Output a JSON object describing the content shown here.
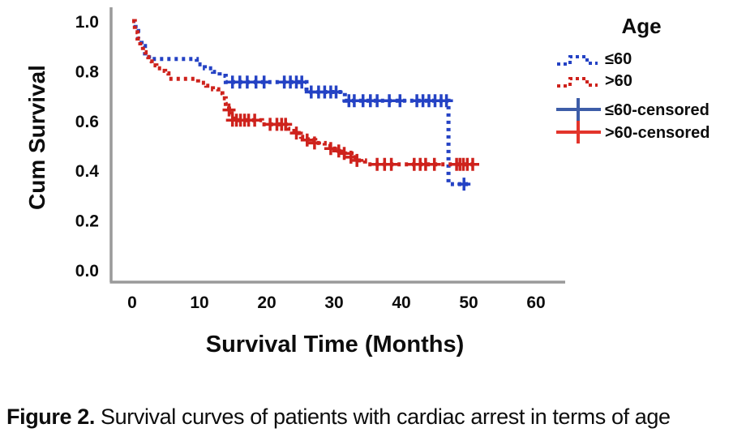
{
  "figure": {
    "caption_label": "Figure 2.",
    "caption_text": " Survival curves of patients with cardiac arrest in terms of age"
  },
  "colors": {
    "axis": "#9A9A9A",
    "text": "#0d0d0d",
    "blue_curve": "#2442C4",
    "red_curve": "#CE221C",
    "blue_censored_legend": "#3D5DA8",
    "red_censored_legend": "#E3342B"
  },
  "chart_data": {
    "type": "line",
    "subtype": "kaplan_meier_step",
    "title": "",
    "xlabel": "Survival Time (Months)",
    "ylabel": "Cum Survival",
    "xlim": [
      0,
      60
    ],
    "ylim": [
      0.0,
      1.0
    ],
    "xticks": [
      "0",
      "10",
      "20",
      "30",
      "40",
      "50",
      "60"
    ],
    "yticks": [
      "0.0",
      "0.2",
      "0.4",
      "0.6",
      "0.8",
      "1.0"
    ],
    "grid": false,
    "legend": {
      "title": "Age",
      "position": "right",
      "items": [
        {
          "label": "≤60",
          "style": "dashed",
          "color": "#2442C4"
        },
        {
          "label": ">60",
          "style": "dashed",
          "color": "#CE221C"
        },
        {
          "label": "≤60-censored",
          "style": "plus",
          "color": "#3D5DA8"
        },
        {
          "label": ">60-censored",
          "style": "plus",
          "color": "#E3342B"
        }
      ]
    },
    "series": [
      {
        "name": "≤60",
        "color": "#2442C4",
        "line": "dotted",
        "steps": [
          [
            0,
            1.0
          ],
          [
            0.5,
            0.96
          ],
          [
            0.9,
            0.93
          ],
          [
            1.4,
            0.9
          ],
          [
            1.9,
            0.87
          ],
          [
            2.5,
            0.848
          ],
          [
            9.6,
            0.826
          ],
          [
            10.8,
            0.81
          ],
          [
            12.0,
            0.796
          ],
          [
            13.0,
            0.78
          ],
          [
            13.9,
            0.755
          ],
          [
            25.9,
            0.715
          ],
          [
            31.6,
            0.68
          ],
          [
            47.0,
            0.345
          ],
          [
            49.9,
            0.345
          ]
        ],
        "censored": [
          [
            14.9,
            0.755
          ],
          [
            16.0,
            0.755
          ],
          [
            17.1,
            0.755
          ],
          [
            18.4,
            0.755
          ],
          [
            19.6,
            0.755
          ],
          [
            22.6,
            0.755
          ],
          [
            23.5,
            0.755
          ],
          [
            24.4,
            0.755
          ],
          [
            25.2,
            0.755
          ],
          [
            26.6,
            0.715
          ],
          [
            27.7,
            0.715
          ],
          [
            28.6,
            0.715
          ],
          [
            29.5,
            0.715
          ],
          [
            30.3,
            0.715
          ],
          [
            32.2,
            0.68
          ],
          [
            33.0,
            0.68
          ],
          [
            34.3,
            0.68
          ],
          [
            35.4,
            0.68
          ],
          [
            36.4,
            0.68
          ],
          [
            38.2,
            0.68
          ],
          [
            39.8,
            0.68
          ],
          [
            42.3,
            0.68
          ],
          [
            43.2,
            0.68
          ],
          [
            44.1,
            0.68
          ],
          [
            45.0,
            0.68
          ],
          [
            45.9,
            0.68
          ],
          [
            46.7,
            0.68
          ],
          [
            49.3,
            0.345
          ]
        ]
      },
      {
        "name": ">60",
        "color": "#CE221C",
        "line": "dotted",
        "steps": [
          [
            0,
            1.0
          ],
          [
            0.4,
            0.955
          ],
          [
            0.8,
            0.93
          ],
          [
            1.2,
            0.9
          ],
          [
            1.6,
            0.875
          ],
          [
            2.0,
            0.856
          ],
          [
            2.4,
            0.838
          ],
          [
            2.9,
            0.822
          ],
          [
            3.6,
            0.81
          ],
          [
            4.3,
            0.8
          ],
          [
            4.9,
            0.79
          ],
          [
            5.4,
            0.768
          ],
          [
            9.8,
            0.752
          ],
          [
            11.0,
            0.74
          ],
          [
            12.0,
            0.726
          ],
          [
            12.8,
            0.71
          ],
          [
            13.4,
            0.69
          ],
          [
            13.9,
            0.667
          ],
          [
            14.4,
            0.643
          ],
          [
            14.8,
            0.618
          ],
          [
            15.1,
            0.602
          ],
          [
            19.3,
            0.585
          ],
          [
            23.2,
            0.567
          ],
          [
            24.1,
            0.55
          ],
          [
            25.1,
            0.535
          ],
          [
            26.1,
            0.522
          ],
          [
            27.2,
            0.51
          ],
          [
            28.6,
            0.498
          ],
          [
            29.7,
            0.488
          ],
          [
            30.7,
            0.478
          ],
          [
            31.6,
            0.468
          ],
          [
            32.6,
            0.453
          ],
          [
            33.6,
            0.44
          ],
          [
            34.6,
            0.424
          ],
          [
            51.1,
            0.424
          ]
        ],
        "censored": [
          [
            14.4,
            0.643
          ],
          [
            14.9,
            0.602
          ],
          [
            15.5,
            0.602
          ],
          [
            16.1,
            0.602
          ],
          [
            16.7,
            0.602
          ],
          [
            17.3,
            0.602
          ],
          [
            18.2,
            0.602
          ],
          [
            20.5,
            0.585
          ],
          [
            21.5,
            0.585
          ],
          [
            22.2,
            0.585
          ],
          [
            22.8,
            0.585
          ],
          [
            24.4,
            0.55
          ],
          [
            26.0,
            0.522
          ],
          [
            27.1,
            0.51
          ],
          [
            29.5,
            0.488
          ],
          [
            30.7,
            0.478
          ],
          [
            31.5,
            0.468
          ],
          [
            32.5,
            0.453
          ],
          [
            33.4,
            0.44
          ],
          [
            36.4,
            0.424
          ],
          [
            37.5,
            0.424
          ],
          [
            38.5,
            0.424
          ],
          [
            41.9,
            0.424
          ],
          [
            42.8,
            0.424
          ],
          [
            43.6,
            0.424
          ],
          [
            44.9,
            0.424
          ],
          [
            48.2,
            0.424
          ],
          [
            48.7,
            0.424
          ],
          [
            49.2,
            0.424
          ],
          [
            49.8,
            0.424
          ],
          [
            50.6,
            0.424
          ]
        ]
      }
    ]
  }
}
